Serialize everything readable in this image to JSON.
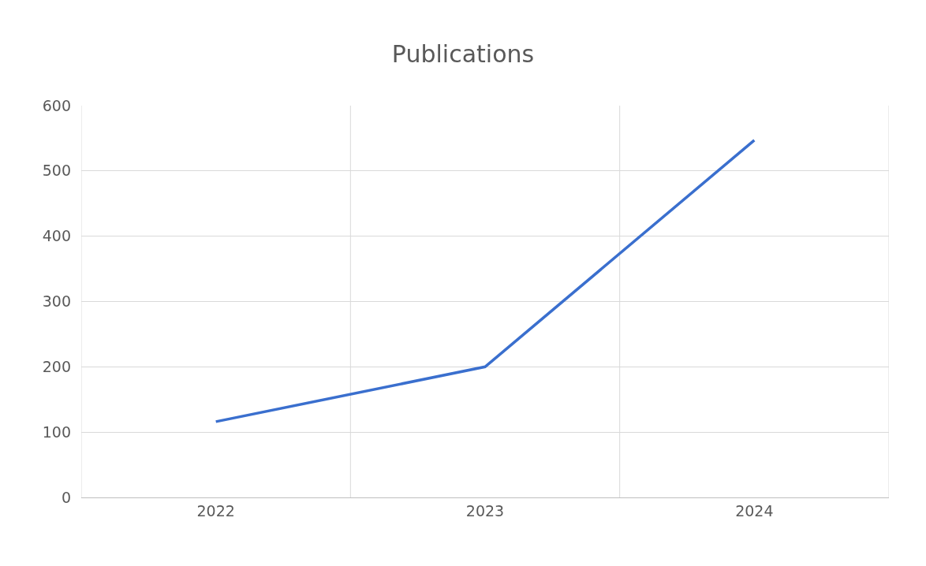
{
  "chart_data": {
    "type": "line",
    "title": "Publications",
    "categories": [
      "2022",
      "2023",
      "2024"
    ],
    "series": [
      {
        "color": "#3a6fce",
        "values": [
          116,
          200,
          547
        ]
      }
    ],
    "ylim": [
      0,
      600
    ],
    "yticks": [
      0,
      100,
      200,
      300,
      400,
      500,
      600
    ],
    "grid": true,
    "marker": "none",
    "line_style": "solid"
  }
}
